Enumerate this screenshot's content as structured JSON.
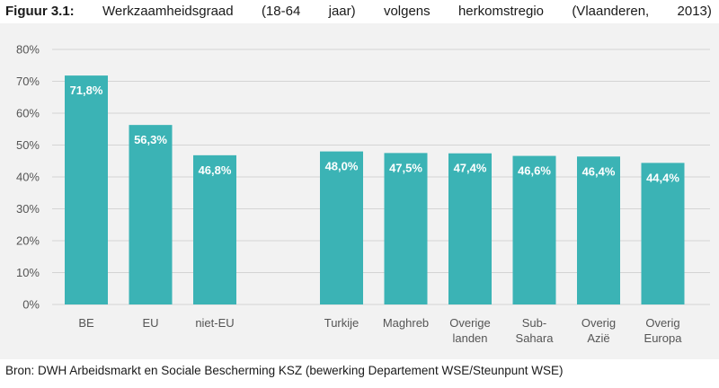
{
  "title": {
    "label": "Figuur 3.1:",
    "words": [
      "Werkzaamheidsgraad",
      "(18-64",
      "jaar)",
      "volgens",
      "herkomstregio",
      "(Vlaanderen,",
      "2013)"
    ]
  },
  "source": "Bron: DWH Arbeidsmarkt en Sociale Bescherming KSZ (bewerking Departement WSE/Steunpunt WSE)",
  "colors": {
    "bar": "#3bb3b5",
    "grid": "#d4d4d4",
    "background": "#f2f2f2"
  },
  "chart_data": {
    "type": "bar",
    "title": "Werkzaamheidsgraad (18-64 jaar) volgens herkomstregio (Vlaanderen, 2013)",
    "xlabel": "",
    "ylabel": "",
    "ylim": [
      0,
      80
    ],
    "y_ticks": [
      "0%",
      "10%",
      "20%",
      "30%",
      "40%",
      "50%",
      "60%",
      "70%",
      "80%"
    ],
    "grid": true,
    "legend": "none",
    "categories": [
      [
        "BE"
      ],
      [
        "EU"
      ],
      [
        "niet-EU"
      ],
      [
        "Turkije"
      ],
      [
        "Maghreb"
      ],
      [
        "Overige",
        "landen"
      ],
      [
        "Sub-",
        "Sahara"
      ],
      [
        "Overig",
        "Azië"
      ],
      [
        "Overig",
        "Europa"
      ]
    ],
    "values": [
      71.8,
      56.3,
      46.8,
      48.0,
      47.5,
      47.4,
      46.6,
      46.4,
      44.4
    ],
    "labels": [
      "71,8%",
      "56,3%",
      "46,8%",
      "48,0%",
      "47,5%",
      "47,4%",
      "46,6%",
      "46,4%",
      "44,4%"
    ],
    "groups": [
      [
        0,
        1,
        2
      ],
      [
        3,
        4,
        5,
        6,
        7,
        8
      ]
    ]
  }
}
